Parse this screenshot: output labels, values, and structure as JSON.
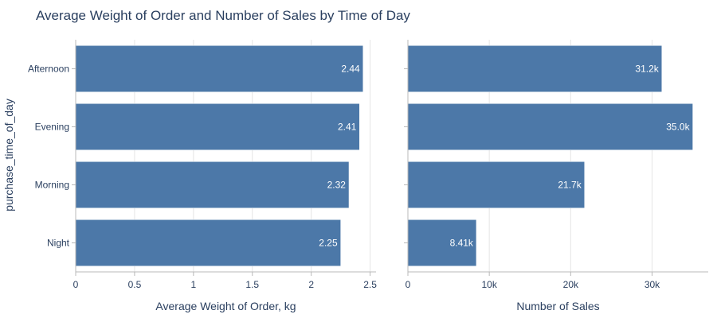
{
  "chart_data": {
    "type": "bar",
    "orientation": "horizontal",
    "title": "Average Weight of Order and Number of Sales by Time of Day",
    "ylabel": "purchase_time_of_day",
    "categories": [
      "Afternoon",
      "Evening",
      "Morning",
      "Night"
    ],
    "bar_color": "#4c78a8",
    "panels": [
      {
        "xlabel": "Average Weight of Order, kg",
        "xlim": [
          0,
          2.55
        ],
        "ticks": [
          0,
          0.5,
          1,
          1.5,
          2,
          2.5
        ],
        "tick_labels": [
          "0",
          "0.5",
          "1",
          "1.5",
          "2",
          "2.5"
        ],
        "values": [
          2.44,
          2.41,
          2.32,
          2.25
        ],
        "data_labels": [
          "2.44",
          "2.41",
          "2.32",
          "2.25"
        ]
      },
      {
        "xlabel": "Number of Sales",
        "xlim": [
          0,
          36900
        ],
        "ticks": [
          0,
          10000,
          20000,
          30000
        ],
        "tick_labels": [
          "0",
          "10k",
          "20k",
          "30k"
        ],
        "values": [
          31200,
          35000,
          21700,
          8410
        ],
        "data_labels": [
          "31.2k",
          "35.0k",
          "21.7k",
          "8.41k"
        ]
      }
    ],
    "grid": true,
    "legend": "none"
  }
}
